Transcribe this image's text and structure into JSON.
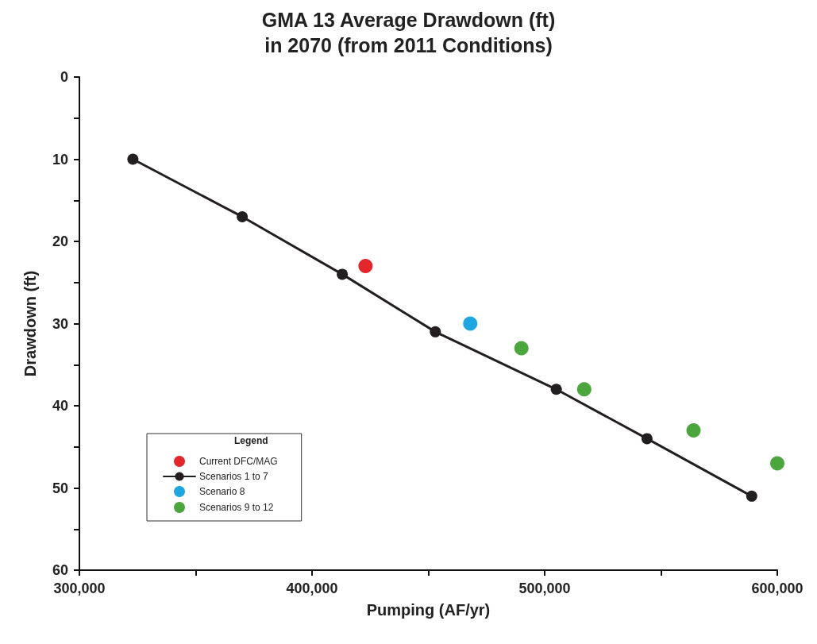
{
  "chart_data": {
    "type": "scatter",
    "title": "GMA 13 Average Drawdown (ft)\nin 2070 (from 2011 Conditions)",
    "xlabel": "Pumping (AF/yr)",
    "ylabel": "Drawdown (ft)",
    "legend_title": "Legend",
    "xlim": [
      300000,
      600000
    ],
    "xticks": [
      {
        "value": 300000,
        "label": "300,000"
      },
      {
        "value": 350000,
        "label": null
      },
      {
        "value": 400000,
        "label": "400,000"
      },
      {
        "value": 450000,
        "label": null
      },
      {
        "value": 500000,
        "label": "500,000"
      },
      {
        "value": 550000,
        "label": null
      },
      {
        "value": 600000,
        "label": "600,000"
      }
    ],
    "ylim": [
      60,
      0
    ],
    "yticks": [
      0,
      {
        "value": 5,
        "label": null
      },
      10,
      {
        "value": 15,
        "label": null
      },
      20,
      {
        "value": 25,
        "label": null
      },
      30,
      {
        "value": 35,
        "label": null
      },
      40,
      {
        "value": 45,
        "label": null
      },
      50,
      {
        "value": 55,
        "label": null
      },
      60
    ],
    "grid": false,
    "legend": "bottom left",
    "marker": "circle",
    "series": [
      {
        "name": "Current DFC/MAG",
        "color": "#e3262b",
        "x": [
          423000
        ],
        "values": [
          23
        ]
      },
      {
        "name": "Scenarios 1 to 7",
        "type": "line",
        "line_style": "solid",
        "color": "#231f20",
        "x": [
          323000,
          370000,
          413000,
          453000,
          505000,
          544000,
          589000
        ],
        "values": [
          10,
          17,
          24,
          31,
          38,
          44,
          51
        ]
      },
      {
        "name": "Scenario 8",
        "color": "#1ea6e0",
        "x": [
          468000
        ],
        "values": [
          30
        ]
      },
      {
        "name": "Scenarios 9 to 12",
        "color": "#4ba63e",
        "x": [
          490000,
          517000,
          564000,
          600000
        ],
        "values": [
          33,
          38,
          43,
          47
        ]
      }
    ]
  }
}
